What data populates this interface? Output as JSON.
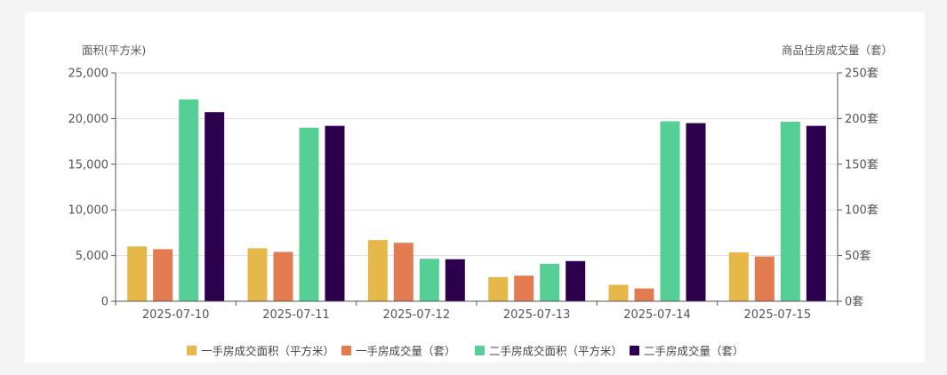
{
  "chart_data": {
    "type": "bar",
    "categories": [
      "2025-07-10",
      "2025-07-11",
      "2025-07-12",
      "2025-07-13",
      "2025-07-14",
      "2025-07-15"
    ],
    "left_axis": {
      "label": "面积(平方米)",
      "ylim": [
        0,
        25000
      ],
      "ticks": [
        "0",
        "5,000",
        "10,000",
        "15,000",
        "20,000",
        "25,000"
      ]
    },
    "right_axis": {
      "label": "商品住房成交量（套）",
      "ylim": [
        0,
        250
      ],
      "ticks": [
        "0套",
        "50套",
        "100套",
        "150套",
        "200套",
        "250套"
      ]
    },
    "series": [
      {
        "name": "一手房成交面积（平方米）",
        "axis": "left",
        "color": "#e6b84a",
        "values": [
          6000,
          5800,
          6700,
          2650,
          1800,
          5350
        ]
      },
      {
        "name": "一手房成交量（套）",
        "axis": "right",
        "color": "#e27b50",
        "values": [
          57,
          54,
          64,
          28,
          14,
          49
        ]
      },
      {
        "name": "二手房成交面积（平方米）",
        "axis": "left",
        "color": "#55cf96",
        "values": [
          22100,
          19000,
          4650,
          4100,
          19700,
          19650
        ]
      },
      {
        "name": "二手房成交量（套）",
        "axis": "right",
        "color": "#2c004d",
        "values": [
          207,
          192,
          46,
          44,
          195,
          192
        ]
      }
    ],
    "grid": true,
    "legend": "bottom-center"
  }
}
